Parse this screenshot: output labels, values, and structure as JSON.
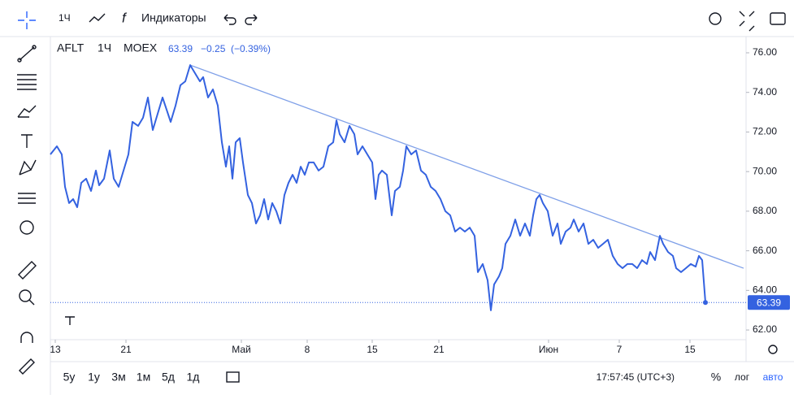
{
  "toolbar": {
    "interval": "1Ч",
    "indicators": "Индикаторы"
  },
  "legend": {
    "symbol": "AFLT",
    "interval": "1Ч",
    "exchange": "MOEX",
    "change": "−0.25",
    "change_pct": "(−0.39%)"
  },
  "bottom_bar": {
    "ranges": [
      "5y",
      "1y",
      "3м",
      "1м",
      "5д",
      "1д"
    ],
    "clock": "17:57:45 (UTC+3)",
    "percent": "%",
    "log": "лог",
    "auto": "авто"
  },
  "chart_data": {
    "type": "line",
    "x": [
      0,
      8,
      14,
      18,
      23,
      28,
      33,
      38,
      44,
      50,
      56,
      60,
      66,
      73,
      78,
      84,
      90,
      96,
      101,
      108,
      114,
      120,
      126,
      132,
      138,
      143,
      148,
      154,
      160,
      166,
      172,
      178,
      184,
      188,
      194,
      200,
      206,
      211,
      216,
      220,
      224,
      228,
      233,
      237,
      243,
      248,
      253,
      258,
      263,
      268,
      273,
      278,
      283,
      288,
      293,
      298,
      303,
      308,
      313,
      318,
      324,
      330,
      336,
      342,
      348,
      352,
      356,
      362,
      368,
      374,
      378,
      384,
      390,
      396,
      400,
      404,
      408,
      414,
      420,
      424,
      430,
      434,
      438,
      444,
      450,
      456,
      462,
      468,
      474,
      480,
      486,
      492,
      498,
      504,
      510,
      516,
      522,
      526,
      532,
      538,
      542,
      546,
      552,
      556,
      560,
      566,
      572,
      578,
      584,
      590,
      594,
      598,
      602,
      606,
      612,
      618,
      624,
      628,
      634,
      640,
      644,
      650,
      656,
      662,
      668,
      674,
      680,
      686,
      692,
      698,
      704,
      710,
      716,
      722,
      728,
      734,
      738,
      744,
      750,
      754,
      760,
      766,
      770,
      776,
      782,
      788,
      794,
      798,
      802,
      806
    ],
    "series": [
      {
        "name": "AFLT",
        "color": "#3462e0",
        "values": [
          70.87,
          71.28,
          70.87,
          69.23,
          68.41,
          68.61,
          68.2,
          69.43,
          69.64,
          69.02,
          70.05,
          69.31,
          69.64,
          71.07,
          69.64,
          69.23,
          70.05,
          70.87,
          72.51,
          72.31,
          72.72,
          73.74,
          72.1,
          72.92,
          73.74,
          73.13,
          72.51,
          73.33,
          74.36,
          74.56,
          75.38,
          74.97,
          74.56,
          74.77,
          73.74,
          74.15,
          73.33,
          71.48,
          70.25,
          71.28,
          69.64,
          71.48,
          71.69,
          70.46,
          68.82,
          68.41,
          67.38,
          67.79,
          68.61,
          67.58,
          68.41,
          68.0,
          67.38,
          68.82,
          69.43,
          69.84,
          69.43,
          70.25,
          69.84,
          70.46,
          70.46,
          70.05,
          70.25,
          71.28,
          71.48,
          72.59,
          71.89,
          71.48,
          72.31,
          71.89,
          70.87,
          71.28,
          70.87,
          70.46,
          68.61,
          69.84,
          70.05,
          69.84,
          67.79,
          69.02,
          69.23,
          70.05,
          71.28,
          70.87,
          71.07,
          70.05,
          69.84,
          69.23,
          69.02,
          68.61,
          68.0,
          67.79,
          66.97,
          67.17,
          66.97,
          67.17,
          66.76,
          64.92,
          65.33,
          64.51,
          62.99,
          64.3,
          64.71,
          65.12,
          66.35,
          66.76,
          67.58,
          66.76,
          67.38,
          66.76,
          67.79,
          68.61,
          68.82,
          68.41,
          68.0,
          66.76,
          67.38,
          66.35,
          66.97,
          67.17,
          67.58,
          66.97,
          67.38,
          66.35,
          66.56,
          66.15,
          66.35,
          66.56,
          65.74,
          65.33,
          65.12,
          65.33,
          65.33,
          65.12,
          65.53,
          65.33,
          65.94,
          65.53,
          66.76,
          66.35,
          65.94,
          65.74,
          65.12,
          64.92,
          65.12,
          65.33,
          65.2,
          65.74,
          65.53,
          63.39
        ]
      }
    ],
    "last_price": 63.39,
    "trend_line": {
      "color": "#7fa0e8",
      "x": [
        172,
        853
      ],
      "values": [
        75.38,
        65.12
      ]
    },
    "xlim": [
      0,
      856
    ],
    "xticks": [
      {
        "value": 6,
        "label": "13"
      },
      {
        "value": 93,
        "label": "21"
      },
      {
        "value": 235,
        "label": "Май"
      },
      {
        "value": 316,
        "label": "8"
      },
      {
        "value": 396,
        "label": "15"
      },
      {
        "value": 478,
        "label": "21"
      },
      {
        "value": 613,
        "label": "Июн"
      },
      {
        "value": 700,
        "label": "7"
      },
      {
        "value": 787,
        "label": "15"
      }
    ],
    "ylim": [
      61.51,
      76.82
    ],
    "yticks": [
      {
        "value": 62,
        "label": "62.00"
      },
      {
        "value": 64,
        "label": "64.00"
      },
      {
        "value": 66,
        "label": "66.00"
      },
      {
        "value": 68,
        "label": "68.00"
      },
      {
        "value": 70,
        "label": "70.00"
      },
      {
        "value": 72,
        "label": "72.00"
      },
      {
        "value": 74,
        "label": "74.00"
      },
      {
        "value": 76,
        "label": "76.00"
      }
    ],
    "grid": false
  }
}
